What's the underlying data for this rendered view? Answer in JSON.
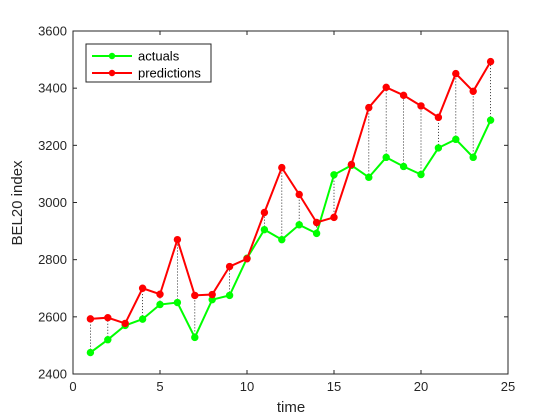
{
  "chart_data": {
    "type": "line",
    "title": "",
    "xlabel": "time",
    "ylabel": "BEL20 index",
    "xlim": [
      0,
      25
    ],
    "ylim": [
      2400,
      3600
    ],
    "xticks": [
      0,
      5,
      10,
      15,
      20,
      25
    ],
    "yticks": [
      2400,
      2600,
      2800,
      3000,
      3200,
      3400,
      3600
    ],
    "grid": false,
    "legend_position": "top-left",
    "x": [
      1,
      2,
      3,
      4,
      5,
      6,
      7,
      8,
      9,
      10,
      11,
      12,
      13,
      14,
      15,
      16,
      17,
      18,
      19,
      20,
      21,
      22,
      23,
      24
    ],
    "series": [
      {
        "name": "actuals",
        "color": "#00ff00",
        "marker": "circle",
        "values": [
          2475,
          2520,
          2570,
          2592,
          2643,
          2650,
          2528,
          2660,
          2675,
          2805,
          2905,
          2870,
          2922,
          2892,
          3097,
          3130,
          3088,
          3158,
          3126,
          3098,
          3191,
          3221,
          3158,
          3288
        ]
      },
      {
        "name": "predictions",
        "color": "#ff0000",
        "marker": "circle",
        "values": [
          2593,
          2597,
          2577,
          2700,
          2679,
          2870,
          2675,
          2678,
          2776,
          2803,
          2965,
          3122,
          3028,
          2930,
          2948,
          3133,
          3332,
          3403,
          3375,
          3338,
          3298,
          3451,
          3389,
          3493
        ]
      }
    ],
    "connector_lines": {
      "style": "dotted",
      "color": "#000000",
      "description_free": true
    }
  }
}
